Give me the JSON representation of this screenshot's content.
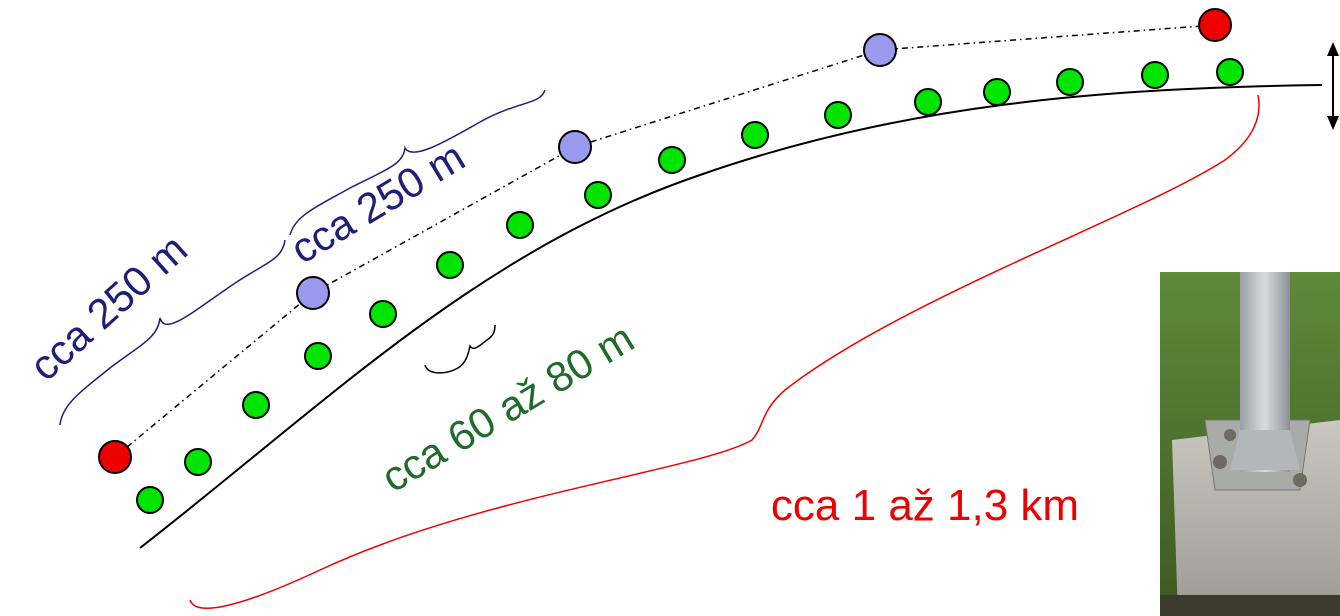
{
  "annotations": [
    "cca 250 m",
    "cca 250 m",
    "cca 60 až 80 m",
    "cca 1 až 1,3 km"
  ]
}
